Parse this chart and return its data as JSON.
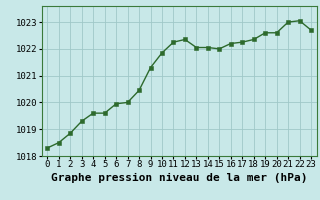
{
  "x": [
    0,
    1,
    2,
    3,
    4,
    5,
    6,
    7,
    8,
    9,
    10,
    11,
    12,
    13,
    14,
    15,
    16,
    17,
    18,
    19,
    20,
    21,
    22,
    23
  ],
  "y": [
    1018.3,
    1018.5,
    1018.85,
    1019.3,
    1019.6,
    1019.6,
    1019.95,
    1020.0,
    1020.45,
    1021.3,
    1021.85,
    1022.25,
    1022.35,
    1022.05,
    1022.05,
    1022.0,
    1022.2,
    1022.25,
    1022.35,
    1022.6,
    1022.6,
    1023.0,
    1023.05,
    1022.7
  ],
  "line_color": "#2d6a2d",
  "marker_color": "#2d6a2d",
  "bg_color": "#c8e8e8",
  "grid_color": "#a0c8c8",
  "xlabel": "Graphe pression niveau de la mer (hPa)",
  "xlabel_fontsize": 8,
  "ylim_min": 1018,
  "ylim_max": 1023.6,
  "xlim_min": -0.5,
  "xlim_max": 23.5,
  "yticks": [
    1018,
    1019,
    1020,
    1021,
    1022,
    1023
  ],
  "xticks": [
    0,
    1,
    2,
    3,
    4,
    5,
    6,
    7,
    8,
    9,
    10,
    11,
    12,
    13,
    14,
    15,
    16,
    17,
    18,
    19,
    20,
    21,
    22,
    23
  ],
  "tick_fontsize": 6.5,
  "marker_size": 2.5,
  "line_width": 1.0
}
